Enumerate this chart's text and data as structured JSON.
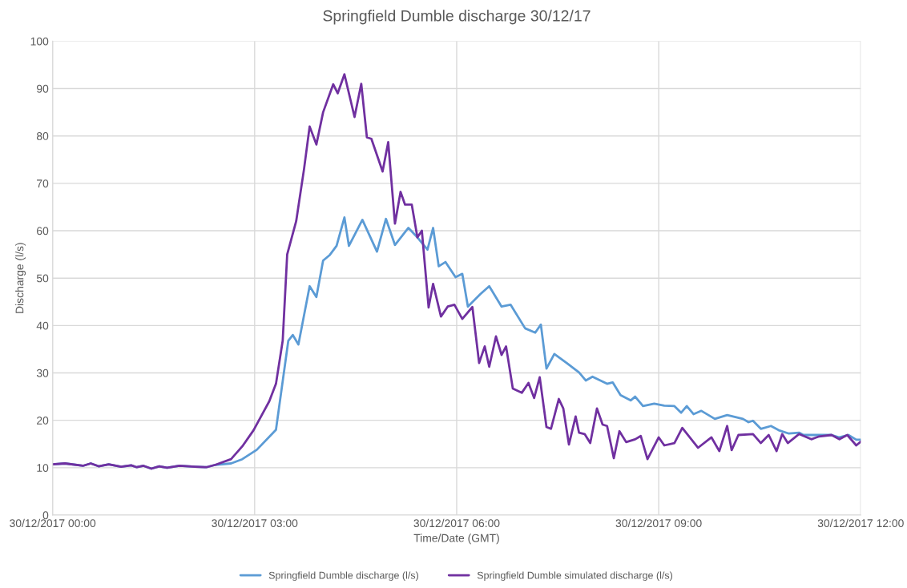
{
  "chart_data": {
    "type": "line",
    "title": "Springfield Dumble discharge 30/12/17",
    "xlabel": "Time/Date (GMT)",
    "ylabel": "Discharge (l/s)",
    "xlim": [
      "2017-12-30T00:00",
      "2017-12-30T12:00"
    ],
    "xticks": [
      {
        "value": "2017-12-30T00:00",
        "label": "30/12/2017 00:00"
      },
      {
        "value": "2017-12-30T03:00",
        "label": "30/12/2017 03:00"
      },
      {
        "value": "2017-12-30T06:00",
        "label": "30/12/2017 06:00"
      },
      {
        "value": "2017-12-30T09:00",
        "label": "30/12/2017 09:00"
      },
      {
        "value": "2017-12-30T12:00",
        "label": "30/12/2017 12:00"
      }
    ],
    "ylim": [
      0,
      100
    ],
    "yticks": [
      0,
      10,
      20,
      30,
      40,
      50,
      60,
      70,
      80,
      90,
      100
    ],
    "grid": true,
    "legend": "bottom",
    "marker": "none",
    "line_style": "solid",
    "series": [
      {
        "name": "Springfield Dumble discharge (l/s)",
        "color": "#5b9bd5",
        "x": [
          "2017-12-30T00:00",
          "2017-12-30T00:11",
          "2017-12-30T00:27",
          "2017-12-30T00:34",
          "2017-12-30T00:41",
          "2017-12-30T00:50",
          "2017-12-30T01:01",
          "2017-12-30T01:10",
          "2017-12-30T01:15",
          "2017-12-30T01:21",
          "2017-12-30T01:28",
          "2017-12-30T01:35",
          "2017-12-30T01:42",
          "2017-12-30T01:53",
          "2017-12-30T02:07",
          "2017-12-30T02:17",
          "2017-12-30T02:25",
          "2017-12-30T02:39",
          "2017-12-30T02:49",
          "2017-12-30T03:02",
          "2017-12-30T03:19",
          "2017-12-30T03:30",
          "2017-12-30T03:34",
          "2017-12-30T03:39",
          "2017-12-30T03:49",
          "2017-12-30T03:55",
          "2017-12-30T04:01",
          "2017-12-30T04:07",
          "2017-12-30T04:13",
          "2017-12-30T04:20",
          "2017-12-30T04:24",
          "2017-12-30T04:36",
          "2017-12-30T04:49",
          "2017-12-30T04:57",
          "2017-12-30T05:05",
          "2017-12-30T05:17",
          "2017-12-30T05:25",
          "2017-12-30T05:34",
          "2017-12-30T05:39",
          "2017-12-30T05:44",
          "2017-12-30T05:50",
          "2017-12-30T05:59",
          "2017-12-30T06:05",
          "2017-12-30T06:10",
          "2017-12-30T06:21",
          "2017-12-30T06:29",
          "2017-12-30T06:40",
          "2017-12-30T06:48",
          "2017-12-30T07:01",
          "2017-12-30T07:10",
          "2017-12-30T07:15",
          "2017-12-30T07:20",
          "2017-12-30T07:27",
          "2017-12-30T07:38",
          "2017-12-30T07:49",
          "2017-12-30T07:55",
          "2017-12-30T08:01",
          "2017-12-30T08:14",
          "2017-12-30T08:19",
          "2017-12-30T08:26",
          "2017-12-30T08:35",
          "2017-12-30T08:39",
          "2017-12-30T08:46",
          "2017-12-30T08:56",
          "2017-12-30T09:05",
          "2017-12-30T09:14",
          "2017-12-30T09:20",
          "2017-12-30T09:25",
          "2017-12-30T09:31",
          "2017-12-30T09:38",
          "2017-12-30T09:50",
          "2017-12-30T10:01",
          "2017-12-30T10:15",
          "2017-12-30T10:20",
          "2017-12-30T10:24",
          "2017-12-30T10:31",
          "2017-12-30T10:40",
          "2017-12-30T10:47",
          "2017-12-30T10:56",
          "2017-12-30T11:05",
          "2017-12-30T11:09",
          "2017-12-30T11:34",
          "2017-12-30T11:41",
          "2017-12-30T11:49",
          "2017-12-30T11:56",
          "2017-12-30T12:00"
        ],
        "values": [
          10.7,
          10.9,
          10.4,
          10.9,
          10.3,
          10.7,
          10.2,
          10.5,
          10.1,
          10.4,
          9.8,
          10.3,
          10.0,
          10.4,
          10.2,
          10.1,
          10.6,
          10.9,
          11.8,
          13.8,
          18,
          36.8,
          38,
          36,
          48.3,
          46,
          53.7,
          54.9,
          56.8,
          62.8,
          56.8,
          62.3,
          55.6,
          62.5,
          57,
          60.6,
          58.6,
          56,
          60.6,
          52.5,
          53.4,
          50.2,
          50.9,
          44,
          46.6,
          48.3,
          44,
          44.4,
          39.4,
          38.5,
          40.2,
          30.9,
          34,
          32.1,
          30.1,
          28.4,
          29.2,
          27.7,
          28,
          25.3,
          24.2,
          25,
          23,
          23.5,
          23.1,
          23,
          21.6,
          23,
          21.3,
          22,
          20.3,
          21.1,
          20.3,
          19.6,
          19.9,
          18.2,
          18.8,
          17.9,
          17.2,
          17.4,
          16.9,
          16.9,
          16.4,
          16.9,
          15.9,
          15.9
        ]
      },
      {
        "name": "Springfield Dumble simulated discharge (l/s)",
        "color": "#7030a0",
        "x": [
          "2017-12-30T00:00",
          "2017-12-30T00:11",
          "2017-12-30T00:27",
          "2017-12-30T00:34",
          "2017-12-30T00:41",
          "2017-12-30T00:50",
          "2017-12-30T01:01",
          "2017-12-30T01:10",
          "2017-12-30T01:15",
          "2017-12-30T01:21",
          "2017-12-30T01:28",
          "2017-12-30T01:35",
          "2017-12-30T01:42",
          "2017-12-30T01:53",
          "2017-12-30T02:07",
          "2017-12-30T02:17",
          "2017-12-30T02:25",
          "2017-12-30T02:39",
          "2017-12-30T02:49",
          "2017-12-30T02:59",
          "2017-12-30T03:13",
          "2017-12-30T03:19",
          "2017-12-30T03:25",
          "2017-12-30T03:29",
          "2017-12-30T03:37",
          "2017-12-30T03:44",
          "2017-12-30T03:49",
          "2017-12-30T03:55",
          "2017-12-30T04:01",
          "2017-12-30T04:10",
          "2017-12-30T04:14",
          "2017-12-30T04:20",
          "2017-12-30T04:29",
          "2017-12-30T04:35",
          "2017-12-30T04:40",
          "2017-12-30T04:44",
          "2017-12-30T04:54",
          "2017-12-30T04:59",
          "2017-12-30T05:05",
          "2017-12-30T05:10",
          "2017-12-30T05:14",
          "2017-12-30T05:20",
          "2017-12-30T05:25",
          "2017-12-30T05:29",
          "2017-12-30T05:35",
          "2017-12-30T05:39",
          "2017-12-30T05:46",
          "2017-12-30T05:52",
          "2017-12-30T05:58",
          "2017-12-30T06:05",
          "2017-12-30T06:14",
          "2017-12-30T06:20",
          "2017-12-30T06:25",
          "2017-12-30T06:29",
          "2017-12-30T06:35",
          "2017-12-30T06:40",
          "2017-12-30T06:44",
          "2017-12-30T06:50",
          "2017-12-30T06:58",
          "2017-12-30T07:04",
          "2017-12-30T07:09",
          "2017-12-30T07:14",
          "2017-12-30T07:20",
          "2017-12-30T07:24",
          "2017-12-30T07:31",
          "2017-12-30T07:35",
          "2017-12-30T07:40",
          "2017-12-30T07:46",
          "2017-12-30T07:49",
          "2017-12-30T07:54",
          "2017-12-30T07:59",
          "2017-12-30T08:05",
          "2017-12-30T08:10",
          "2017-12-30T08:14",
          "2017-12-30T08:20",
          "2017-12-30T08:25",
          "2017-12-30T08:31",
          "2017-12-30T08:39",
          "2017-12-30T08:44",
          "2017-12-30T08:50",
          "2017-12-30T09:00",
          "2017-12-30T09:05",
          "2017-12-30T09:14",
          "2017-12-30T09:21",
          "2017-12-30T09:35",
          "2017-12-30T09:47",
          "2017-12-30T09:54",
          "2017-12-30T10:01",
          "2017-12-30T10:05",
          "2017-12-30T10:11",
          "2017-12-30T10:24",
          "2017-12-30T10:31",
          "2017-12-30T10:38",
          "2017-12-30T10:45",
          "2017-12-30T10:50",
          "2017-12-30T10:55",
          "2017-12-30T11:05",
          "2017-12-30T11:16",
          "2017-12-30T11:23",
          "2017-12-30T11:34",
          "2017-12-30T11:41",
          "2017-12-30T11:48",
          "2017-12-30T11:56",
          "2017-12-30T12:00"
        ],
        "values": [
          10.7,
          10.9,
          10.4,
          10.9,
          10.3,
          10.7,
          10.2,
          10.5,
          10.1,
          10.4,
          9.8,
          10.3,
          10.0,
          10.4,
          10.2,
          10.1,
          10.6,
          11.8,
          14.5,
          17.9,
          24,
          27.7,
          36.8,
          55,
          62,
          73,
          82,
          78.2,
          85,
          90.9,
          89,
          93,
          84,
          91,
          79.7,
          79.4,
          72.5,
          78.7,
          61.5,
          68.2,
          65.5,
          65.5,
          58.6,
          60,
          43.8,
          48.8,
          41.9,
          44,
          44.4,
          41.4,
          43.9,
          32.1,
          35.6,
          31.3,
          37.7,
          33.8,
          35.6,
          26.7,
          25.8,
          27.9,
          24.7,
          29.1,
          18.6,
          18.2,
          24.5,
          22.5,
          14.9,
          20.8,
          17.4,
          17.1,
          15.2,
          22.5,
          19.1,
          18.8,
          12,
          17.7,
          15.4,
          16,
          16.7,
          11.8,
          16.4,
          14.7,
          15.2,
          18.4,
          14.2,
          16.4,
          13.5,
          18.8,
          13.7,
          16.9,
          17.1,
          15.2,
          16.9,
          13.5,
          17.1,
          15.2,
          17.1,
          16,
          16.6,
          16.9,
          16,
          16.9,
          14.7,
          15.5
        ]
      }
    ]
  }
}
